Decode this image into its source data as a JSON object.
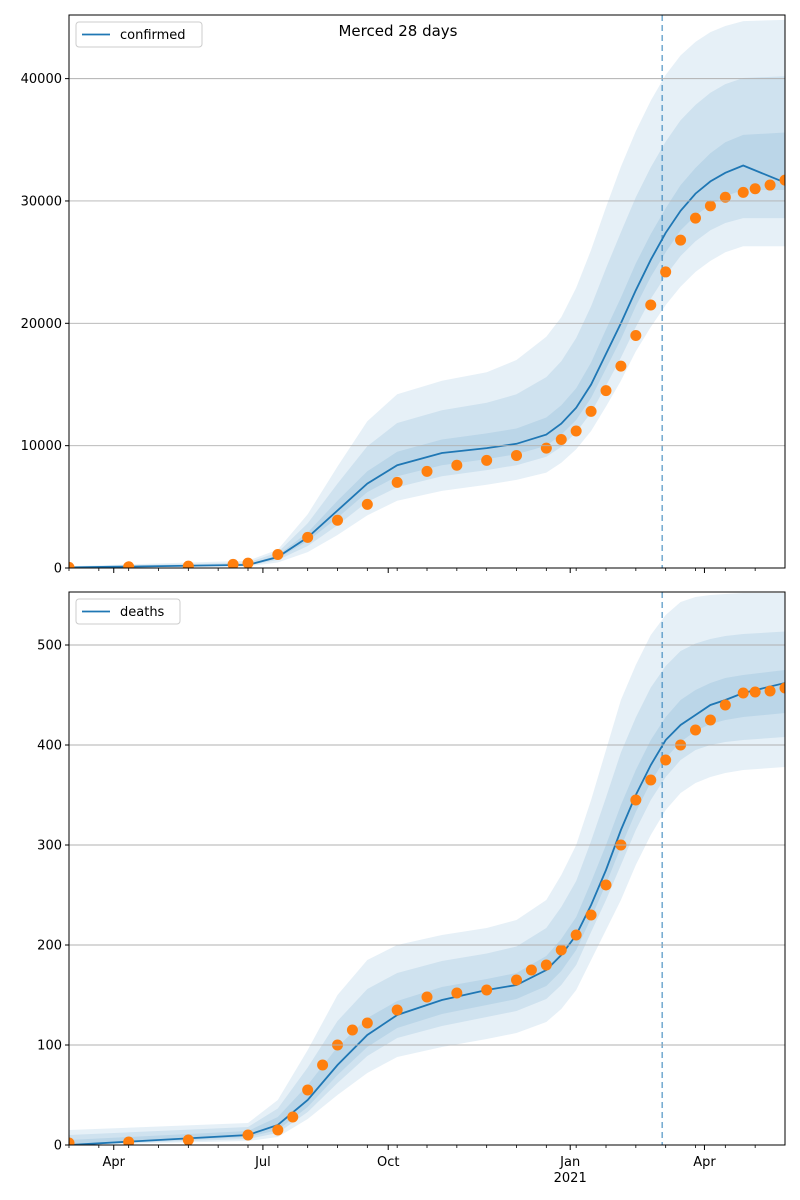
{
  "figure": {
    "title": "Merced 28 days",
    "colors": {
      "model_line": "#1f77b4",
      "observed": "#ff7f0e",
      "band": "#1f77b4",
      "grid": "#b0b0b0",
      "forecast_marker": "#1f77b4"
    }
  },
  "chart_data": [
    {
      "type": "line",
      "panel": "top",
      "legend": [
        "confirmed"
      ],
      "legend_position": "top-left",
      "grid": "y-major",
      "x_axis": {
        "range": [
          0,
          484
        ],
        "ticks": [
          {
            "x": 15,
            "label": "Apr"
          },
          {
            "x": 65,
            "label": "Jul"
          },
          {
            "x": 107,
            "label": "Oct"
          },
          {
            "x": 168,
            "label": "Jan",
            "sub": "2021"
          },
          {
            "x": 213,
            "label": "Apr"
          }
        ]
      },
      "forecast_start_day": 401,
      "ylim": [
        0,
        45200
      ],
      "yticks": [
        0,
        10000,
        20000,
        30000,
        40000
      ],
      "series": [
        {
          "name": "confirmed",
          "role": "model",
          "x": [
            0,
            60,
            70,
            80,
            90,
            100,
            110,
            125,
            140,
            150,
            160,
            165,
            170,
            175,
            180,
            185,
            190,
            195,
            200,
            205,
            210,
            215,
            220,
            226,
            240
          ],
          "y": [
            50,
            250,
            900,
            2500,
            4700,
            6900,
            8400,
            9400,
            9800,
            10150,
            10900,
            11800,
            13100,
            15000,
            17500,
            20000,
            22700,
            25200,
            27400,
            29200,
            30600,
            31600,
            32300,
            32900,
            31500
          ]
        },
        {
          "name": "observed",
          "role": "observed",
          "x": [
            0,
            20,
            40,
            55,
            60,
            70,
            80,
            90,
            100,
            110,
            120,
            130,
            140,
            150,
            160,
            165,
            170,
            175,
            180,
            185,
            190,
            195,
            200,
            205,
            210,
            215,
            220,
            226,
            230,
            235,
            240
          ],
          "y": [
            50,
            100,
            150,
            300,
            400,
            1100,
            2500,
            3900,
            5200,
            7000,
            7900,
            8400,
            8800,
            9200,
            9800,
            10500,
            11200,
            12800,
            14500,
            16500,
            19000,
            21500,
            24200,
            26800,
            28600,
            29600,
            30300,
            30700,
            31000,
            31300,
            31700
          ]
        }
      ],
      "bands": [
        {
          "level": "outer",
          "lower": [
            0,
            150,
            450,
            1300,
            2700,
            4300,
            5500,
            6300,
            6800,
            7200,
            7800,
            8600,
            9700,
            11200,
            13200,
            15300,
            17700,
            19700,
            21500,
            23000,
            24200,
            25100,
            25800,
            26300,
            26300
          ],
          "upper": [
            150,
            600,
            1500,
            4400,
            8300,
            12000,
            14200,
            15300,
            16000,
            17000,
            18900,
            20500,
            22900,
            26000,
            29500,
            32800,
            35700,
            38200,
            40300,
            41900,
            43000,
            43800,
            44300,
            44700,
            44800
          ]
        },
        {
          "level": "middle",
          "lower": [
            20,
            200,
            650,
            1800,
            3500,
            5400,
            6600,
            7500,
            8000,
            8400,
            9100,
            9900,
            11100,
            12700,
            14900,
            17200,
            19700,
            22000,
            23900,
            25500,
            26700,
            27600,
            28200,
            28600,
            28600
          ]
        },
        {
          "level": "inner",
          "lower": [
            35,
            230,
            780,
            2200,
            4100,
            6200,
            7500,
            8400,
            8900,
            9300,
            10000,
            10900,
            12100,
            13900,
            16300,
            18700,
            21400,
            23800,
            25800,
            27600,
            28800,
            29700,
            30400,
            30900,
            30900
          ],
          "upper": [
            70,
            290,
            1050,
            2900,
            5500,
            7900,
            9500,
            10500,
            11000,
            11400,
            12300,
            13300,
            14700,
            16800,
            19500,
            22100,
            24900,
            27300,
            29400,
            31300,
            32700,
            33900,
            34800,
            35400,
            35600
          ]
        }
      ]
    },
    {
      "type": "line",
      "panel": "bottom",
      "legend": [
        "deaths"
      ],
      "legend_position": "top-left",
      "grid": "y-major",
      "x_axis": {
        "range": [
          0,
          484
        ],
        "ticks": [
          {
            "x": 15,
            "label": "Apr"
          },
          {
            "x": 65,
            "label": "Jul"
          },
          {
            "x": 107,
            "label": "Oct"
          },
          {
            "x": 168,
            "label": "Jan",
            "sub": "2021"
          },
          {
            "x": 213,
            "label": "Apr"
          }
        ]
      },
      "forecast_start_day": 401,
      "ylim": [
        0,
        553
      ],
      "yticks": [
        0,
        100,
        200,
        300,
        400,
        500
      ],
      "series": [
        {
          "name": "deaths",
          "role": "model",
          "x": [
            0,
            60,
            70,
            80,
            90,
            100,
            110,
            125,
            140,
            150,
            160,
            165,
            170,
            175,
            180,
            185,
            190,
            195,
            200,
            205,
            210,
            215,
            220,
            226,
            240
          ],
          "y": [
            0,
            10,
            20,
            45,
            80,
            110,
            130,
            145,
            155,
            160,
            175,
            190,
            210,
            240,
            275,
            315,
            350,
            380,
            405,
            420,
            430,
            440,
            445,
            452,
            462
          ]
        },
        {
          "name": "observed",
          "role": "observed",
          "x": [
            0,
            20,
            40,
            60,
            70,
            75,
            80,
            85,
            90,
            95,
            100,
            110,
            120,
            130,
            140,
            150,
            155,
            160,
            165,
            170,
            175,
            180,
            185,
            190,
            195,
            200,
            205,
            210,
            215,
            220,
            226,
            230,
            235,
            240
          ],
          "y": [
            2,
            3,
            5,
            10,
            15,
            28,
            55,
            80,
            100,
            115,
            122,
            135,
            148,
            152,
            155,
            165,
            175,
            180,
            195,
            210,
            230,
            260,
            300,
            345,
            365,
            385,
            400,
            415,
            425,
            440,
            452,
            453,
            454,
            457
          ]
        }
      ],
      "bands": [
        {
          "level": "outer",
          "lower": [
            0,
            4,
            8,
            26,
            50,
            72,
            88,
            98,
            106,
            112,
            123,
            136,
            155,
            185,
            215,
            245,
            280,
            310,
            335,
            352,
            362,
            368,
            372,
            375,
            378
          ],
          "upper": [
            15,
            22,
            45,
            95,
            150,
            185,
            200,
            210,
            217,
            225,
            245,
            270,
            300,
            345,
            395,
            445,
            480,
            510,
            530,
            543,
            548,
            550,
            551,
            552,
            552
          ]
        },
        {
          "level": "middle",
          "lower": [
            0,
            6,
            12,
            33,
            62,
            89,
            107,
            119,
            128,
            134,
            146,
            160,
            180,
            213,
            245,
            280,
            315,
            345,
            368,
            385,
            395,
            400,
            403,
            405,
            408
          ]
        },
        {
          "level": "inner",
          "lower": [
            0,
            8,
            15,
            38,
            70,
            98,
            117,
            131,
            140,
            146,
            159,
            174,
            195,
            227,
            261,
            298,
            333,
            363,
            387,
            403,
            414,
            421,
            425,
            428,
            432
          ],
          "upper": [
            5,
            14,
            28,
            60,
            98,
            127,
            144,
            158,
            166,
            172,
            189,
            206,
            228,
            263,
            300,
            340,
            375,
            405,
            428,
            445,
            455,
            462,
            467,
            470,
            475
          ]
        }
      ]
    }
  ]
}
